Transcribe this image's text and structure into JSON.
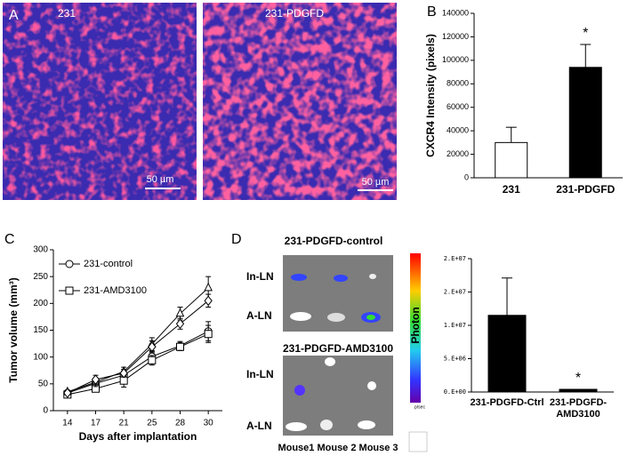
{
  "panel_a": {
    "label": "A",
    "images": [
      {
        "title": "231",
        "scale_bar": "50 µm"
      },
      {
        "title": "231-PDGFD",
        "scale_bar": "50 µm"
      }
    ]
  },
  "panel_d": {
    "label": "D",
    "groups": [
      {
        "title": "231-PDGFD-control",
        "rows": [
          "In-LN",
          "A-LN"
        ]
      },
      {
        "title": "231-PDGFD-AMD3100",
        "rows": [
          "In-LN",
          "A-LN"
        ]
      }
    ],
    "mice": "Mouse1 Mouse 2 Mouse 3",
    "colorbar_unit": "p/sec"
  },
  "chart_data": [
    {
      "type": "bar",
      "panel_label": "B",
      "ylabel": "CXCR4 Intensity (pixels)",
      "categories": [
        "231",
        "231-PDGFD"
      ],
      "values": [
        30000,
        94000
      ],
      "errors": [
        13000,
        19500
      ],
      "colors": [
        "#ffffff",
        "#000000"
      ],
      "annotation": "*",
      "ylim": [
        0,
        140000
      ],
      "yticks": [
        0,
        20000,
        40000,
        60000,
        80000,
        100000,
        120000,
        140000
      ]
    },
    {
      "type": "line",
      "panel_label": "C",
      "ylabel": "Tumor volume (mm³)",
      "xlabel": "Days after implantation",
      "categories": [
        "14",
        "17",
        "21",
        "25",
        "28",
        "30"
      ],
      "legend": "upper left",
      "series": [
        {
          "name": "231-control",
          "marker": "circle",
          "color": "#000000",
          "values": [
            33,
            51,
            66,
            101,
            121,
            148
          ],
          "errors": [
            3,
            7,
            8,
            9,
            8,
            18
          ]
        },
        {
          "name": "231-AMD3100",
          "marker": "square",
          "color": "#000000",
          "values": [
            30,
            41,
            56,
            94,
            119,
            143
          ],
          "errors": [
            3,
            6,
            12,
            9,
            7,
            16
          ]
        },
        {
          "marker": "triangle",
          "color": "#000000",
          "values": [
            35,
            53,
            73,
            124,
            181,
            229
          ],
          "errors": [
            3,
            8,
            8,
            12,
            12,
            21
          ]
        },
        {
          "marker": "diamond",
          "color": "#000000",
          "values": [
            33,
            58,
            70,
            119,
            162,
            205
          ],
          "errors": [
            3,
            8,
            7,
            11,
            10,
            12
          ]
        }
      ],
      "ylim": [
        0,
        300
      ],
      "yticks": [
        0,
        50,
        100,
        150,
        200,
        250,
        300
      ]
    },
    {
      "type": "bar",
      "panel_label": "",
      "ylabel": "Photon",
      "categories": [
        "231-PDGFD-Ctrl",
        "231-PDGFD-AMD3100"
      ],
      "values": [
        11500000,
        400000
      ],
      "errors": [
        5600000,
        0
      ],
      "colors": [
        "#000000",
        "#000000"
      ],
      "annotation": "*",
      "ylim": [
        0,
        20000000
      ],
      "yticks": [
        {
          "value": 0,
          "label": "0.E+00"
        },
        {
          "value": 5000000,
          "label": "5.E+06"
        },
        {
          "value": 10000000,
          "label": "1.E+07"
        },
        {
          "value": 15000000,
          "label": "2.E+07"
        },
        {
          "value": 20000000,
          "label": "2.E+07"
        }
      ]
    }
  ]
}
